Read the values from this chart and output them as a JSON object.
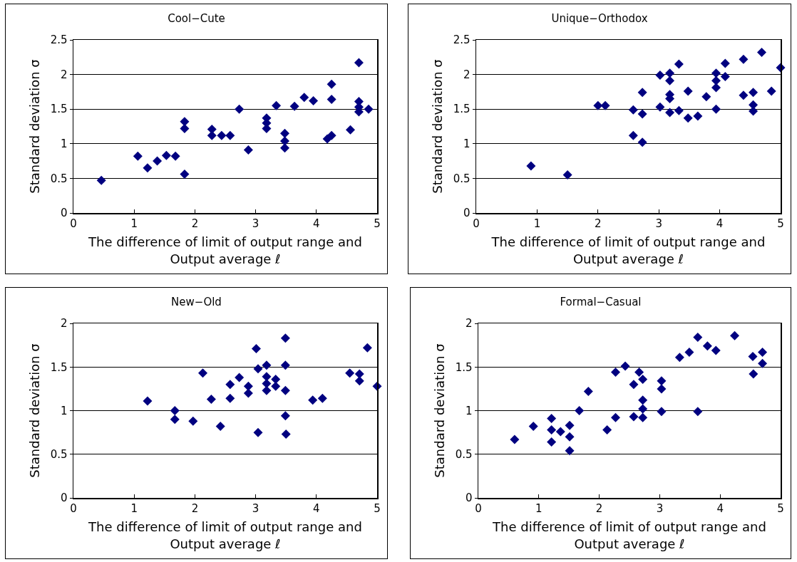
{
  "chart_data": [
    {
      "type": "scatter",
      "title": "Cool−Cute",
      "xlabel": "The difference of limit of output range and\nOutput average ℓ",
      "ylabel": "Standard deviation σ",
      "color": "#000080",
      "marker": "diamond",
      "grid": "y",
      "xlim": [
        0,
        5
      ],
      "xticks": [
        0,
        1,
        2,
        3,
        4,
        5
      ],
      "ylim": [
        0,
        2.5
      ],
      "yticks": [
        0,
        0.5,
        1,
        1.5,
        2,
        2.5
      ],
      "x": [
        0.46,
        1.06,
        1.22,
        1.38,
        1.53,
        1.68,
        1.83,
        1.83,
        1.83,
        2.28,
        2.28,
        2.44,
        2.58,
        2.73,
        2.88,
        3.18,
        3.18,
        3.18,
        3.34,
        3.48,
        3.48,
        3.48,
        3.64,
        3.8,
        3.95,
        4.18,
        4.25,
        4.25,
        4.25,
        4.56,
        4.7,
        4.7,
        4.7,
        4.7,
        4.86
      ],
      "values": [
        0.47,
        0.82,
        0.65,
        0.75,
        0.83,
        0.82,
        0.56,
        1.22,
        1.32,
        1.21,
        1.12,
        1.12,
        1.12,
        1.5,
        0.91,
        1.22,
        1.3,
        1.37,
        1.55,
        1.15,
        1.04,
        0.94,
        1.54,
        1.67,
        1.62,
        1.07,
        1.12,
        1.64,
        1.86,
        1.2,
        2.17,
        1.61,
        1.53,
        1.46,
        1.5
      ]
    },
    {
      "type": "scatter",
      "title": "Unique−Orthodox",
      "xlabel": "The difference of limit of output range and\nOutput average ℓ",
      "ylabel": "Standard deviation σ",
      "color": "#000080",
      "marker": "diamond",
      "grid": "y",
      "xlim": [
        0,
        5
      ],
      "xticks": [
        0,
        1,
        2,
        3,
        4,
        5
      ],
      "ylim": [
        0,
        2.5
      ],
      "yticks": [
        0,
        0.5,
        1,
        1.5,
        2,
        2.5
      ],
      "x": [
        0.9,
        1.5,
        2.0,
        2.12,
        2.58,
        2.58,
        2.73,
        2.73,
        2.73,
        3.02,
        3.02,
        3.18,
        3.18,
        3.18,
        3.18,
        3.18,
        3.33,
        3.33,
        3.48,
        3.48,
        3.64,
        3.78,
        3.94,
        3.94,
        3.94,
        3.94,
        4.09,
        4.09,
        4.39,
        4.39,
        4.55,
        4.55,
        4.55,
        4.69,
        4.85,
        5.0
      ],
      "values": [
        0.68,
        0.55,
        1.55,
        1.55,
        1.49,
        1.12,
        1.02,
        1.43,
        1.74,
        1.99,
        1.53,
        2.02,
        1.91,
        1.71,
        1.65,
        1.45,
        2.15,
        1.48,
        1.76,
        1.37,
        1.4,
        1.68,
        2.02,
        1.91,
        1.81,
        1.5,
        2.16,
        1.97,
        2.22,
        1.7,
        1.74,
        1.56,
        1.47,
        2.32,
        1.76,
        2.1
      ]
    },
    {
      "type": "scatter",
      "title": "New−Old",
      "xlabel": "The difference of limit of output range and\nOutput average ℓ",
      "ylabel": "Standard deviation σ",
      "color": "#000080",
      "marker": "diamond",
      "grid": "y",
      "xlim": [
        0,
        5
      ],
      "xticks": [
        0,
        1,
        2,
        3,
        4,
        5
      ],
      "ylim": [
        0,
        2
      ],
      "yticks": [
        0,
        0.5,
        1,
        1.5,
        2
      ],
      "x": [
        1.22,
        1.67,
        1.67,
        1.97,
        2.13,
        2.27,
        2.42,
        2.58,
        2.58,
        2.73,
        2.88,
        2.88,
        3.01,
        3.04,
        3.04,
        3.18,
        3.18,
        3.18,
        3.18,
        3.33,
        3.33,
        3.49,
        3.49,
        3.49,
        3.49,
        3.5,
        3.94,
        4.1,
        4.55,
        4.71,
        4.71,
        4.84,
        5.0
      ],
      "values": [
        1.11,
        1.0,
        0.9,
        0.88,
        1.43,
        1.13,
        0.82,
        1.3,
        1.14,
        1.38,
        1.28,
        1.2,
        1.71,
        1.48,
        0.75,
        1.52,
        1.39,
        1.31,
        1.23,
        1.36,
        1.28,
        1.83,
        1.52,
        1.23,
        0.94,
        0.73,
        1.12,
        1.14,
        1.43,
        1.42,
        1.34,
        1.72,
        1.28
      ]
    },
    {
      "type": "scatter",
      "title": "Formal−Casual",
      "xlabel": "The difference of limit of output range and\nOutput average ℓ",
      "ylabel": "Standard deviation σ",
      "color": "#000080",
      "marker": "diamond",
      "grid": "y",
      "xlim": [
        0,
        5
      ],
      "xticks": [
        0,
        1,
        2,
        3,
        4,
        5
      ],
      "ylim": [
        0,
        2
      ],
      "yticks": [
        0,
        0.5,
        1,
        1.5,
        2
      ],
      "x": [
        0.6,
        0.91,
        1.21,
        1.21,
        1.21,
        1.36,
        1.51,
        1.51,
        1.51,
        1.67,
        1.82,
        2.13,
        2.27,
        2.27,
        2.43,
        2.57,
        2.57,
        2.66,
        2.72,
        2.72,
        2.72,
        2.72,
        3.03,
        3.03,
        3.03,
        3.33,
        3.49,
        3.63,
        3.63,
        3.79,
        3.93,
        4.24,
        4.54,
        4.55,
        4.7,
        4.7
      ],
      "values": [
        0.67,
        0.82,
        0.91,
        0.78,
        0.64,
        0.76,
        0.83,
        0.7,
        0.54,
        1.0,
        1.22,
        0.78,
        1.44,
        0.92,
        1.51,
        1.3,
        0.93,
        1.44,
        1.36,
        1.12,
        1.02,
        0.92,
        1.34,
        1.25,
        0.99,
        1.61,
        1.67,
        1.84,
        0.99,
        1.74,
        1.69,
        1.86,
        1.62,
        1.42,
        1.67,
        1.54
      ]
    }
  ]
}
